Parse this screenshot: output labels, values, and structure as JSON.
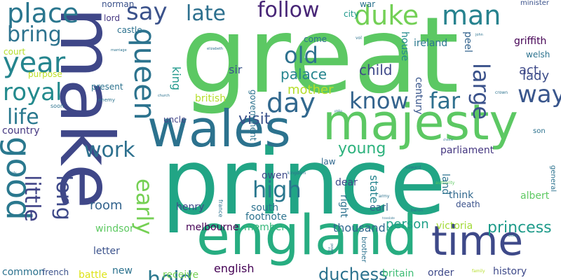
{
  "words": [
    {
      "text": "great",
      "color": "#5cc863",
      "weight": 400
    },
    {
      "text": "prince",
      "color": "#21a585",
      "weight": 400
    },
    {
      "text": "make",
      "color": "#3f4788",
      "weight": 400
    },
    {
      "text": "england",
      "color": "#27ad81",
      "weight": 400
    },
    {
      "text": "majesty",
      "color": "#5cc863",
      "weight": 400
    },
    {
      "text": "wales",
      "color": "#2c728e",
      "weight": 400
    },
    {
      "text": "time",
      "color": "#3e4989",
      "weight": 400
    },
    {
      "text": "good",
      "color": "#2a788e",
      "weight": 400
    },
    {
      "text": "queen",
      "color": "#2c738e",
      "weight": 400
    },
    {
      "text": "duke",
      "color": "#73d055",
      "weight": 400
    },
    {
      "text": "man",
      "color": "#26828e",
      "weight": 400
    },
    {
      "text": "place",
      "color": "#2a768e",
      "weight": 400
    },
    {
      "text": "say",
      "color": "#3b528b",
      "weight": 400
    },
    {
      "text": "late",
      "color": "#2d708e",
      "weight": 400
    },
    {
      "text": "follow",
      "color": "#482677",
      "weight": 400
    },
    {
      "text": "year",
      "color": "#25858e",
      "weight": 400
    },
    {
      "text": "bring",
      "color": "#2c728e",
      "weight": 400
    },
    {
      "text": "royal",
      "color": "#238a8d",
      "weight": 400
    },
    {
      "text": "old",
      "color": "#2d718e",
      "weight": 400
    },
    {
      "text": "day",
      "color": "#31688e",
      "weight": 400
    },
    {
      "text": "know",
      "color": "#33638d",
      "weight": 400
    },
    {
      "text": "far",
      "color": "#2e6f8e",
      "weight": 400
    },
    {
      "text": "way",
      "color": "#39568c",
      "weight": 400
    },
    {
      "text": "large",
      "color": "#3b528b",
      "weight": 400
    },
    {
      "text": "life",
      "color": "#2a788e",
      "weight": 400
    },
    {
      "text": "high",
      "color": "#2a778e",
      "weight": 400
    },
    {
      "text": "work",
      "color": "#2d708e",
      "weight": 400
    },
    {
      "text": "visit",
      "color": "#3b528b",
      "weight": 400
    },
    {
      "text": "young",
      "color": "#2db27d",
      "weight": 400
    },
    {
      "text": "early",
      "color": "#75d054",
      "weight": 400
    },
    {
      "text": "long",
      "color": "#3e4989",
      "weight": 400
    },
    {
      "text": "little",
      "color": "#414487",
      "weight": 400
    },
    {
      "text": "hold",
      "color": "#2a788e",
      "weight": 400
    },
    {
      "text": "princess",
      "color": "#1e9b8a",
      "weight": 400
    },
    {
      "text": "duchess",
      "color": "#2c728e",
      "weight": 400
    },
    {
      "text": "palace",
      "color": "#25848e",
      "weight": 400
    },
    {
      "text": "child",
      "color": "#3e4989",
      "weight": 400
    },
    {
      "text": "mother",
      "color": "#b5de2b",
      "weight": 400
    },
    {
      "text": "lady",
      "color": "#3d4e8a",
      "weight": 400
    },
    {
      "text": "act",
      "color": "#3e4989",
      "weight": 400
    },
    {
      "text": "room",
      "color": "#33638d",
      "weight": 400
    },
    {
      "text": "person",
      "color": "#1fa088",
      "weight": 400
    },
    {
      "text": "parliament",
      "color": "#453781",
      "weight": 400
    },
    {
      "text": "thousand",
      "color": "#31688e",
      "weight": 400
    },
    {
      "text": "english",
      "color": "#440154",
      "weight": 400
    },
    {
      "text": "king",
      "color": "#1f988b",
      "weight": 400
    },
    {
      "text": "sir",
      "color": "#3a548c",
      "weight": 400
    },
    {
      "text": "ireland",
      "color": "#2a778e",
      "weight": 400
    },
    {
      "text": "griffith",
      "color": "#440154",
      "weight": 400
    },
    {
      "text": "house",
      "color": "#238a8d",
      "weight": 400
    },
    {
      "text": "peel",
      "color": "#33638d",
      "weight": 400
    },
    {
      "text": "century",
      "color": "#39568c",
      "weight": 400
    },
    {
      "text": "state",
      "color": "#25848e",
      "weight": 400
    },
    {
      "text": "albert",
      "color": "#5ec962",
      "weight": 400
    },
    {
      "text": "victoria",
      "color": "#a2da37",
      "weight": 400
    },
    {
      "text": "history",
      "color": "#3e4989",
      "weight": 400
    },
    {
      "text": "order",
      "color": "#3e4989",
      "weight": 400
    },
    {
      "text": "britain",
      "color": "#3dbc74",
      "weight": 400
    },
    {
      "text": "member",
      "color": "#35b779",
      "weight": 400
    },
    {
      "text": "melbourne",
      "color": "#440154",
      "weight": 400
    },
    {
      "text": "footnote",
      "color": "#2c728e",
      "weight": 400
    },
    {
      "text": "new",
      "color": "#2c728e",
      "weight": 400
    },
    {
      "text": "windsor",
      "color": "#5ec962",
      "weight": 400
    },
    {
      "text": "letter",
      "color": "#3b528b",
      "weight": 400
    },
    {
      "text": "battle",
      "color": "#dde318",
      "weight": 400
    },
    {
      "text": "receive",
      "color": "#75d054",
      "weight": 400
    },
    {
      "text": "common",
      "color": "#2c728e",
      "weight": 400
    },
    {
      "text": "french",
      "color": "#3b528b",
      "weight": 400
    },
    {
      "text": "country",
      "color": "#453781",
      "weight": 400
    },
    {
      "text": "south",
      "color": "#2c728e",
      "weight": 400
    },
    {
      "text": "henry",
      "color": "#3e4989",
      "weight": 400
    },
    {
      "text": "owen",
      "color": "#3e4989",
      "weight": 400
    },
    {
      "text": "law",
      "color": "#31688e",
      "weight": 400
    },
    {
      "text": "dear",
      "color": "#3e4989",
      "weight": 400
    },
    {
      "text": "earl",
      "color": "#33638d",
      "weight": 400
    },
    {
      "text": "think",
      "color": "#31688e",
      "weight": 400
    },
    {
      "text": "land",
      "color": "#2c728e",
      "weight": 400
    },
    {
      "text": "right",
      "color": "#2c728e",
      "weight": 400
    },
    {
      "text": "death",
      "color": "#3b528b",
      "weight": 400
    },
    {
      "text": "uncle",
      "color": "#414487",
      "weight": 400
    },
    {
      "text": "british",
      "color": "#b5de2b",
      "weight": 400
    },
    {
      "text": "government",
      "color": "#2c728e",
      "weight": 400
    },
    {
      "text": "present",
      "color": "#2c728e",
      "weight": 400
    },
    {
      "text": "purpose",
      "color": "#bddf26",
      "weight": 400
    },
    {
      "text": "court",
      "color": "#b5de2b",
      "weight": 400
    },
    {
      "text": "norman",
      "color": "#3b528b",
      "weight": 400
    },
    {
      "text": "lord",
      "color": "#453781",
      "weight": 400
    },
    {
      "text": "castle",
      "color": "#2c728e",
      "weight": 400
    },
    {
      "text": "war",
      "color": "#2c728e",
      "weight": 400
    },
    {
      "text": "city",
      "color": "#1f988b",
      "weight": 400
    },
    {
      "text": "come",
      "color": "#2c728e",
      "weight": 400
    },
    {
      "text": "welsh",
      "color": "#2c728e",
      "weight": 400
    },
    {
      "text": "minister",
      "color": "#3b528b",
      "weight": 400
    },
    {
      "text": "son",
      "color": "#2c728e",
      "weight": 400
    },
    {
      "text": "general",
      "color": "#2c728e",
      "weight": 400
    },
    {
      "text": "brother",
      "color": "#2c728e",
      "weight": 400
    },
    {
      "text": "france",
      "color": "#2c728e",
      "weight": 400
    },
    {
      "text": "soon",
      "color": "#2c728e",
      "weight": 400
    },
    {
      "text": "enemy",
      "color": "#2c728e",
      "weight": 400
    },
    {
      "text": "army",
      "color": "#2c728e",
      "weight": 400
    },
    {
      "text": "baron",
      "color": "#2c728e",
      "weight": 400
    },
    {
      "text": "edward",
      "color": "#2c728e",
      "weight": 400
    },
    {
      "text": "authority",
      "color": "#5ec962",
      "weight": 400
    },
    {
      "text": "kingdom",
      "color": "#2c728e",
      "weight": 400
    },
    {
      "text": "vol",
      "color": "#2c728e",
      "weight": 400
    },
    {
      "text": "elizabeth",
      "color": "#2c728e",
      "weight": 400
    },
    {
      "text": "marriage",
      "color": "#2c728e",
      "weight": 400
    },
    {
      "text": "john",
      "color": "#2c728e",
      "weight": 400
    },
    {
      "text": "crown",
      "color": "#2c728e",
      "weight": 400
    },
    {
      "text": "church",
      "color": "#2c728e",
      "weight": 400
    },
    {
      "text": "power",
      "color": "#2c728e",
      "weight": 400
    },
    {
      "text": "family",
      "color": "#b5de2b",
      "weight": 400
    },
    {
      "text": "translate",
      "color": "#2c728e",
      "weight": 400
    },
    {
      "text": "bishop",
      "color": "#2c728e",
      "weight": 400
    },
    {
      "text": "philip",
      "color": "#2c728e",
      "weight": 400
    },
    {
      "text": "chester",
      "color": "#2c728e",
      "weight": 400
    },
    {
      "text": "lady",
      "color": "#2c728e",
      "weight": 400
    },
    {
      "text": "may",
      "color": "#2c728e",
      "weight": 400
    }
  ]
}
